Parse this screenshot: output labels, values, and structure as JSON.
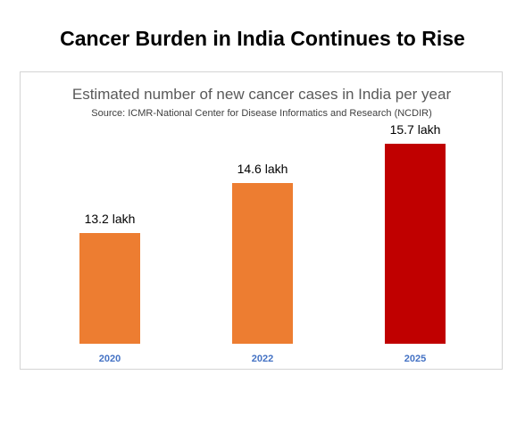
{
  "page": {
    "headline": "Cancer Burden in India Continues to Rise"
  },
  "chart_data": {
    "type": "bar",
    "title": "Estimated number of new cancer cases in India per year",
    "subtitle": "Source: ICMR-National Center for Disease Informatics and Research (NCDIR)",
    "categories": [
      "2020",
      "2022",
      "2025"
    ],
    "values": [
      13.2,
      14.6,
      15.7
    ],
    "data_labels": [
      "13.2 lakh",
      "14.6 lakh",
      "15.7 lakh"
    ],
    "unit": "lakh",
    "xlabel": "",
    "ylabel": "",
    "ylim": [
      10.1,
      15.7
    ],
    "grid": false,
    "legend": "none",
    "colors": [
      "#ED7D31",
      "#ED7D31",
      "#C00000"
    ],
    "tick_label_color": "#4472C4"
  }
}
